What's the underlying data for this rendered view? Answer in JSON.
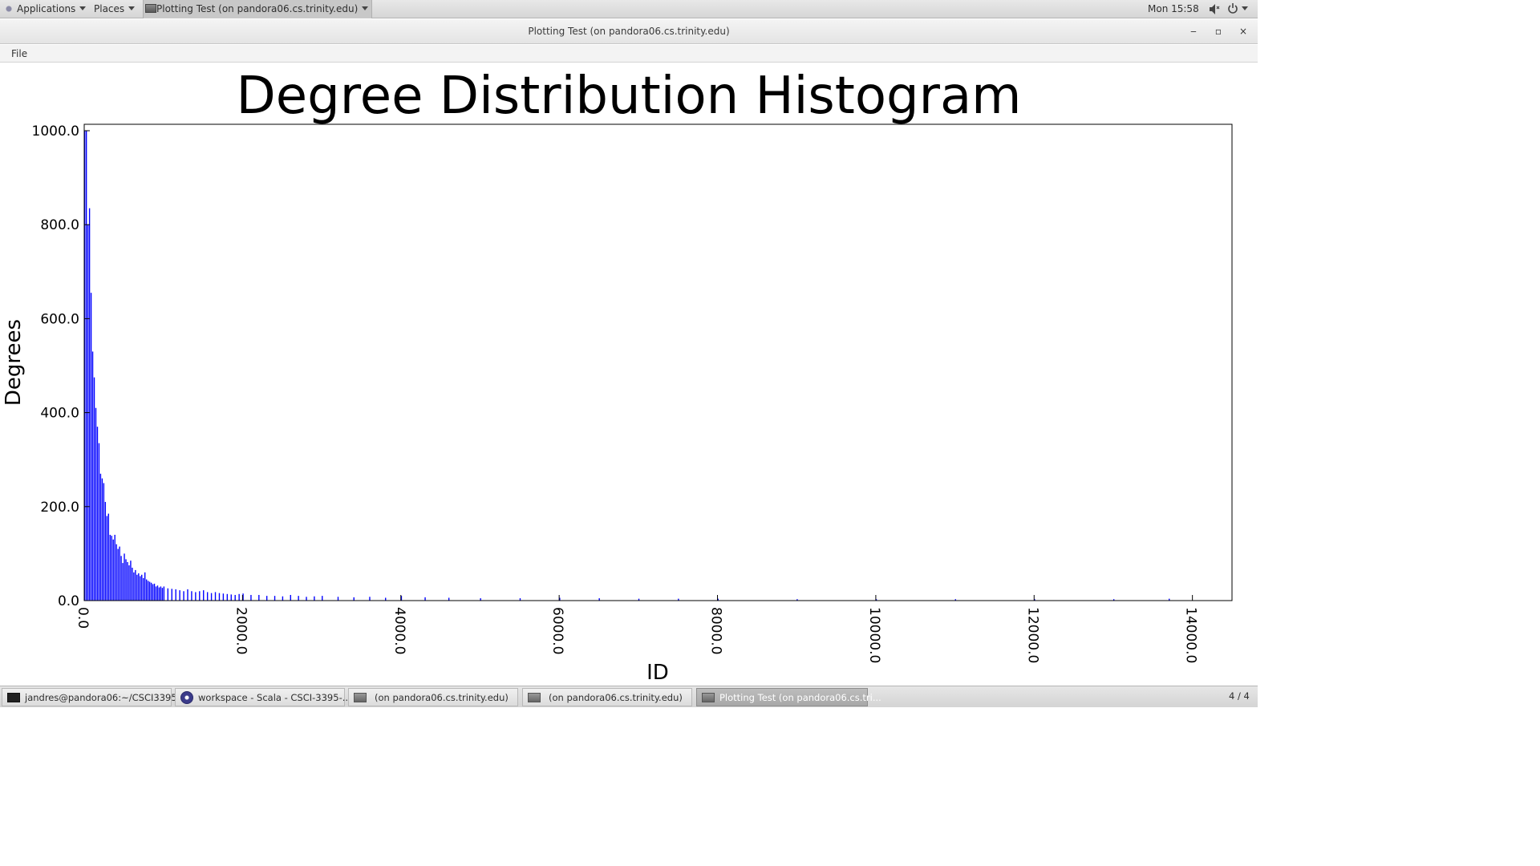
{
  "top_panel": {
    "applications_label": "Applications",
    "places_label": "Places",
    "window_menu_label": "Plotting Test (on pandora06.cs.trinity.edu)",
    "clock": "Mon 15:58"
  },
  "window": {
    "title": "Plotting Test (on pandora06.cs.trinity.edu)",
    "minimize_label": "‒",
    "maximize_label": "▫",
    "close_label": "×"
  },
  "menu_bar": {
    "file_label": "File"
  },
  "chart_data": {
    "type": "bar",
    "title": "Degree Distribution Histogram",
    "xlabel": "ID",
    "ylabel": "Degrees",
    "xlim": [
      0,
      14500
    ],
    "ylim": [
      0,
      1000
    ],
    "x_ticks": [
      "0.0",
      "2000.0",
      "4000.0",
      "6000.0",
      "8000.0",
      "10000.0",
      "12000.0",
      "14000.0"
    ],
    "y_ticks": [
      "0.0",
      "200.0",
      "400.0",
      "600.0",
      "800.0",
      "1000.0"
    ],
    "bar_color": "#0000ff",
    "bin_width": 20,
    "x": [
      0,
      20,
      40,
      60,
      80,
      100,
      120,
      140,
      160,
      180,
      200,
      220,
      240,
      260,
      280,
      300,
      320,
      340,
      360,
      380,
      400,
      420,
      440,
      460,
      480,
      500,
      520,
      540,
      560,
      580,
      600,
      620,
      640,
      660,
      680,
      700,
      720,
      740,
      760,
      780,
      800,
      820,
      840,
      860,
      880,
      900,
      920,
      940,
      960,
      980,
      1000,
      1050,
      1100,
      1150,
      1200,
      1250,
      1300,
      1350,
      1400,
      1450,
      1500,
      1550,
      1600,
      1650,
      1700,
      1750,
      1800,
      1850,
      1900,
      1950,
      2000,
      2100,
      2200,
      2300,
      2400,
      2500,
      2600,
      2700,
      2800,
      2900,
      3000,
      3200,
      3400,
      3600,
      3800,
      4000,
      4300,
      4600,
      5000,
      5500,
      6000,
      6500,
      7000,
      7500,
      8000,
      9000,
      10000,
      11000,
      12000,
      13000,
      13700
    ],
    "values": [
      1000,
      1000,
      800,
      835,
      655,
      530,
      475,
      410,
      370,
      335,
      270,
      260,
      250,
      210,
      180,
      185,
      140,
      138,
      130,
      140,
      120,
      110,
      115,
      95,
      80,
      100,
      88,
      82,
      75,
      85,
      70,
      60,
      65,
      55,
      58,
      52,
      55,
      48,
      60,
      45,
      42,
      40,
      38,
      35,
      36,
      30,
      32,
      28,
      30,
      27,
      30,
      26,
      25,
      24,
      22,
      20,
      24,
      20,
      18,
      20,
      22,
      18,
      16,
      18,
      16,
      15,
      14,
      13,
      12,
      14,
      15,
      12,
      12,
      10,
      10,
      9,
      12,
      10,
      8,
      9,
      10,
      8,
      7,
      8,
      6,
      10,
      7,
      6,
      5,
      5,
      6,
      5,
      4,
      4,
      4,
      3,
      3,
      3,
      3,
      3,
      4
    ]
  },
  "taskbar": {
    "items": [
      {
        "label": "jandres@pandora06:~/CSCI3395/..."
      },
      {
        "label": "workspace - Scala - CSCI-3395-..."
      },
      {
        "label": "(on pandora06.cs.trinity.edu)"
      },
      {
        "label": "(on pandora06.cs.trinity.edu)"
      },
      {
        "label": "Plotting Test (on pandora06.cs.tri..."
      }
    ],
    "workspace": "4 / 4"
  }
}
